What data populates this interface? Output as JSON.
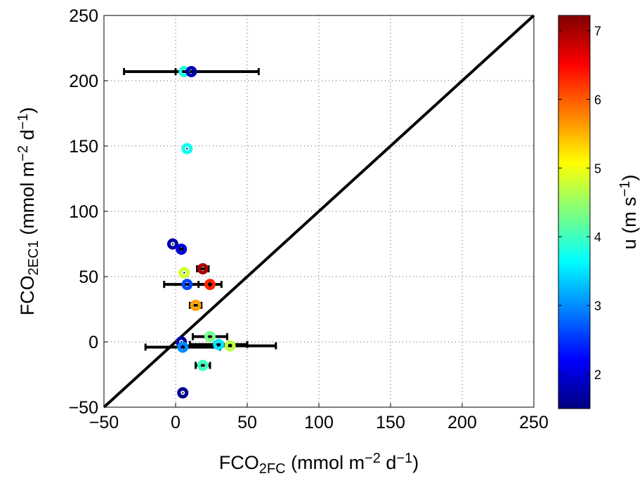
{
  "chart_data": {
    "type": "scatter",
    "xlabel": [
      "FCO",
      "2FC",
      " (mmol m",
      "−2",
      " d",
      "−1",
      ")"
    ],
    "ylabel": [
      "FCO",
      "2EC1",
      " (mmol m",
      "−2",
      " d",
      "−1",
      ")"
    ],
    "colorbar_label": [
      "u (m s",
      "−1",
      ")"
    ],
    "x": [
      6,
      11,
      8,
      -2,
      4,
      19,
      6,
      8,
      24,
      14,
      24,
      4,
      30,
      38,
      5,
      19,
      5
    ],
    "y": [
      207,
      207,
      148,
      75,
      71,
      56,
      53,
      44,
      44,
      28,
      4,
      0,
      -2,
      -3,
      -4,
      -18,
      -39
    ],
    "xerr": [
      6,
      47,
      0,
      0,
      1,
      4,
      0,
      16,
      8,
      4,
      12,
      0,
      20,
      32,
      26,
      5,
      0
    ],
    "u": [
      3.8,
      1.8,
      3.7,
      1.7,
      2.0,
      7.0,
      4.8,
      2.6,
      6.3,
      5.6,
      4.3,
      1.7,
      3.5,
      4.7,
      3.0,
      4.0,
      1.6
    ],
    "xlim": [
      -50,
      250
    ],
    "ylim": [
      -50,
      250
    ],
    "xticks": [
      {
        "value": -50,
        "label": "−50"
      },
      0,
      50,
      100,
      150,
      200,
      250
    ],
    "yticks": [
      {
        "value": -50,
        "label": "−50"
      },
      0,
      50,
      100,
      150,
      200,
      250
    ],
    "clim": [
      1.5,
      7.22
    ],
    "cticks": [
      2,
      3,
      4,
      5,
      6,
      7
    ],
    "colormap": "jet",
    "grid": true,
    "reference_line": [
      -50,
      250
    ],
    "line_color": "#000000",
    "errorbar_color": "#000000"
  }
}
